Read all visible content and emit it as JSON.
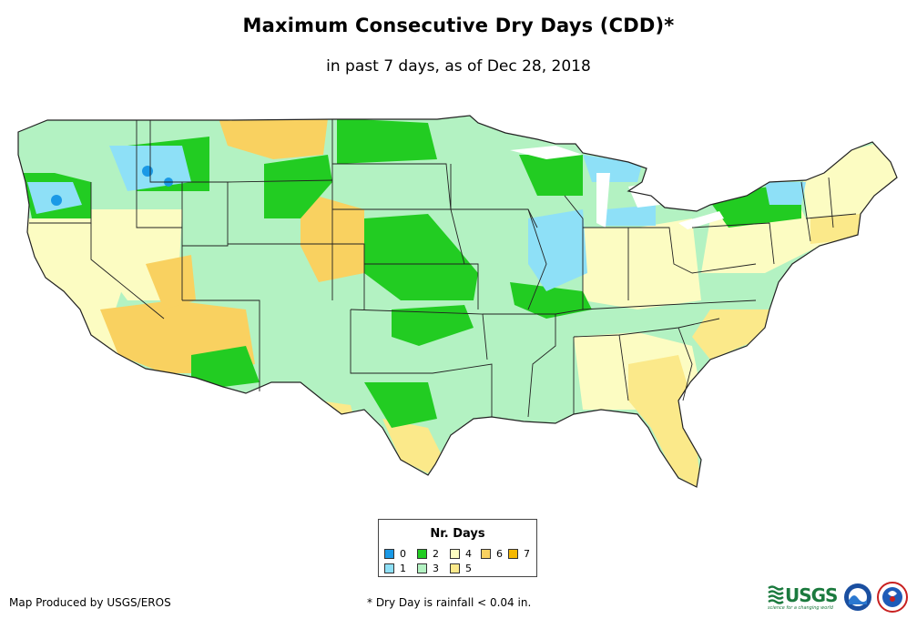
{
  "header": {
    "title": "Maximum Consecutive Dry Days (CDD)*",
    "subtitle": "in past 7 days, as of Dec 28, 2018"
  },
  "legend": {
    "title": "Nr. Days",
    "items": [
      {
        "label": "0",
        "color": "#1a99e6"
      },
      {
        "label": "1",
        "color": "#8ee0f7"
      },
      {
        "label": "2",
        "color": "#22cc22"
      },
      {
        "label": "3",
        "color": "#b3f2c2"
      },
      {
        "label": "4",
        "color": "#fcfcc2"
      },
      {
        "label": "5",
        "color": "#fbe98a"
      },
      {
        "label": "6",
        "color": "#f9d160"
      },
      {
        "label": "7",
        "color": "#f6b800"
      }
    ]
  },
  "footer": {
    "credit": "Map Produced by USGS/EROS",
    "footnote": "* Dry Day is rainfall < 0.04 in.",
    "usgs_logo_text": "USGS",
    "usgs_tagline": "science for a changing world"
  },
  "logos": {
    "usgs": "usgs-logo",
    "noaa": "noaa-logo",
    "nws": "nws-logo"
  }
}
